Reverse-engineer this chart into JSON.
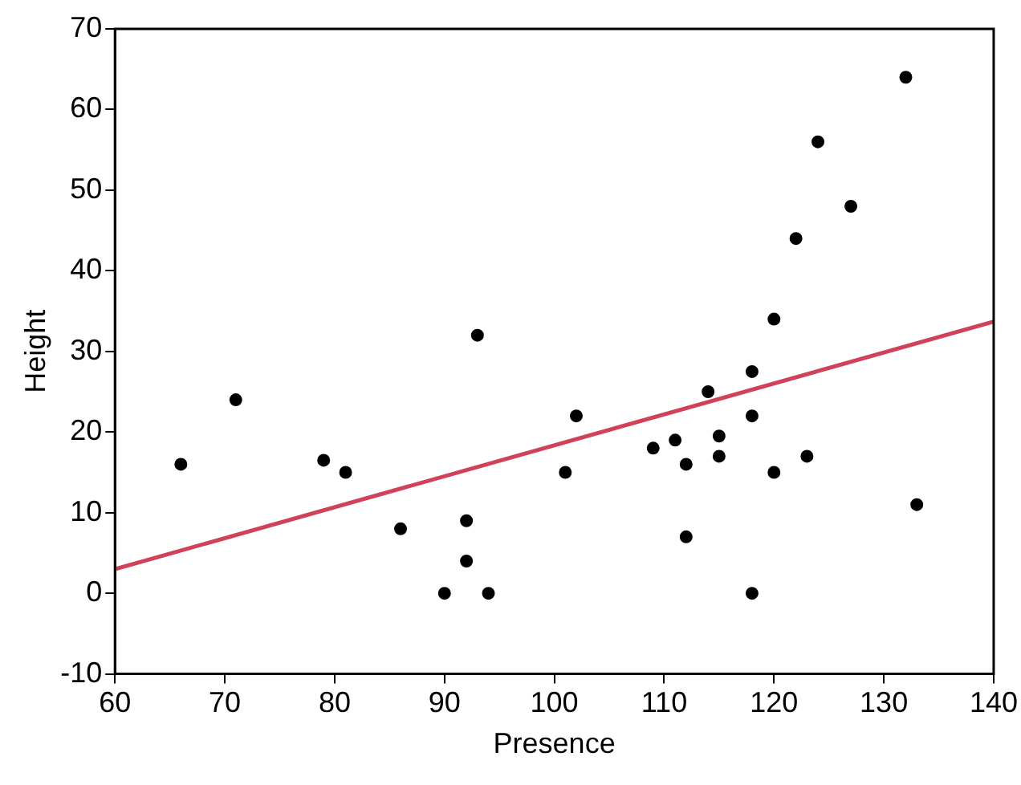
{
  "chart_data": {
    "type": "scatter",
    "xlabel": "Presence",
    "ylabel": "Height",
    "xlim": [
      60,
      140
    ],
    "xticks": [
      60,
      70,
      80,
      90,
      100,
      110,
      120,
      130,
      140
    ],
    "ylim": [
      -10,
      70
    ],
    "yticks": [
      -10,
      0,
      10,
      20,
      30,
      40,
      50,
      60,
      70
    ],
    "grid": false,
    "legend": false,
    "marker": "circle",
    "series": [
      {
        "color": "#000000",
        "x": [
          66,
          71,
          79,
          81,
          86,
          90,
          92,
          92,
          93,
          94,
          101,
          102,
          109,
          111,
          112,
          112,
          114,
          115,
          115,
          118,
          118,
          118,
          120,
          120,
          122,
          123,
          124,
          127,
          132,
          133
        ],
        "values": [
          16,
          24,
          16.5,
          15,
          8,
          0,
          9,
          4,
          32,
          0,
          15,
          22,
          18,
          19,
          16,
          7,
          25,
          19.5,
          17,
          27.5,
          22,
          0,
          34,
          15,
          44,
          17,
          56,
          48,
          64,
          11
        ]
      },
      {
        "type": "line",
        "marker": "none",
        "color": "#d0415a",
        "x": [
          60,
          140
        ],
        "values": [
          3,
          33.7
        ]
      }
    ]
  }
}
